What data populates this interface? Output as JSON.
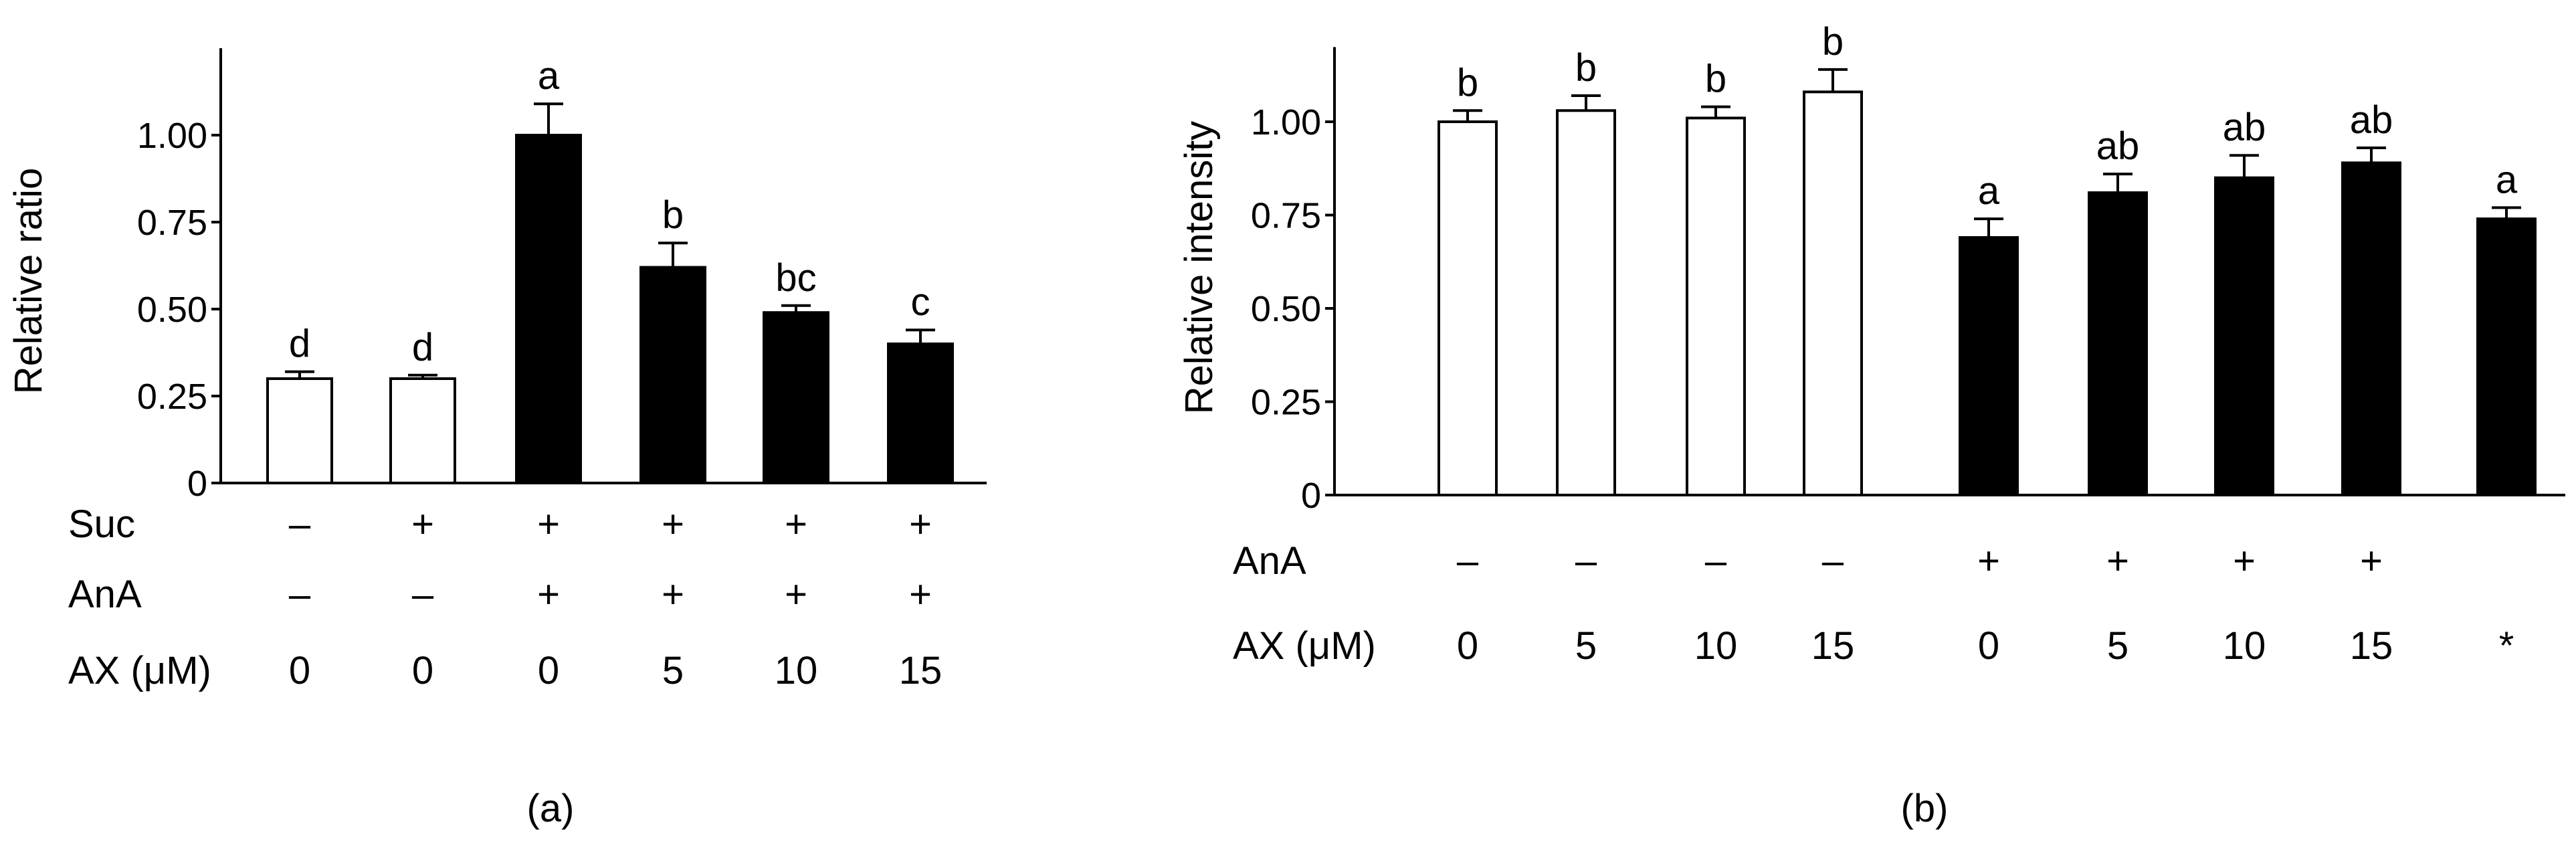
{
  "chart_data": [
    {
      "type": "bar",
      "panel_label": "(a)",
      "ylabel": "Relative ratio",
      "ylim": [
        0,
        1.25
      ],
      "yticks": [
        "0",
        "0.25",
        "0.50",
        "0.75",
        "1.00"
      ],
      "ytick_values": [
        0,
        0.25,
        0.5,
        0.75,
        1.0
      ],
      "grid": false,
      "legend": "none",
      "values": [
        0.3,
        0.3,
        1.0,
        0.62,
        0.49,
        0.4
      ],
      "errors": [
        0.02,
        0.01,
        0.09,
        0.07,
        0.02,
        0.04
      ],
      "fills": [
        "white",
        "white",
        "black",
        "black",
        "black",
        "black"
      ],
      "significance": [
        "d",
        "d",
        "a",
        "b",
        "bc",
        "c"
      ],
      "condition_rows": [
        {
          "label": "Suc",
          "values": [
            "–",
            "+",
            "+",
            "+",
            "+",
            "+"
          ]
        },
        {
          "label": "AnA",
          "values": [
            "–",
            "–",
            "+",
            "+",
            "+",
            "+"
          ]
        },
        {
          "label": "AX (μM)",
          "values": [
            "0",
            "0",
            "0",
            "5",
            "10",
            "15"
          ]
        }
      ]
    },
    {
      "type": "bar",
      "panel_label": "(b)",
      "ylabel": "Relative intensity",
      "ylim": [
        0,
        1.2
      ],
      "yticks": [
        "0",
        "0.25",
        "0.50",
        "0.75",
        "1.00"
      ],
      "ytick_values": [
        0,
        0.25,
        0.5,
        0.75,
        1.0
      ],
      "grid": false,
      "legend": "none",
      "values": [
        1.0,
        1.03,
        1.01,
        1.08,
        0.69,
        0.81,
        0.85,
        0.89,
        0.74
      ],
      "errors": [
        0.03,
        0.04,
        0.03,
        0.06,
        0.05,
        0.05,
        0.06,
        0.04,
        0.03
      ],
      "fills": [
        "white",
        "white",
        "white",
        "white",
        "black",
        "black",
        "black",
        "black",
        "black"
      ],
      "significance": [
        "b",
        "b",
        "b",
        "b",
        "a",
        "ab",
        "ab",
        "ab",
        "a"
      ],
      "condition_rows": [
        {
          "label": "AnA",
          "values": [
            "–",
            "–",
            "–",
            "–",
            "+",
            "+",
            "+",
            "+",
            ""
          ]
        },
        {
          "label": "AX (μM)",
          "values": [
            "0",
            "5",
            "10",
            "15",
            "0",
            "5",
            "10",
            "15",
            "*"
          ]
        }
      ]
    }
  ]
}
